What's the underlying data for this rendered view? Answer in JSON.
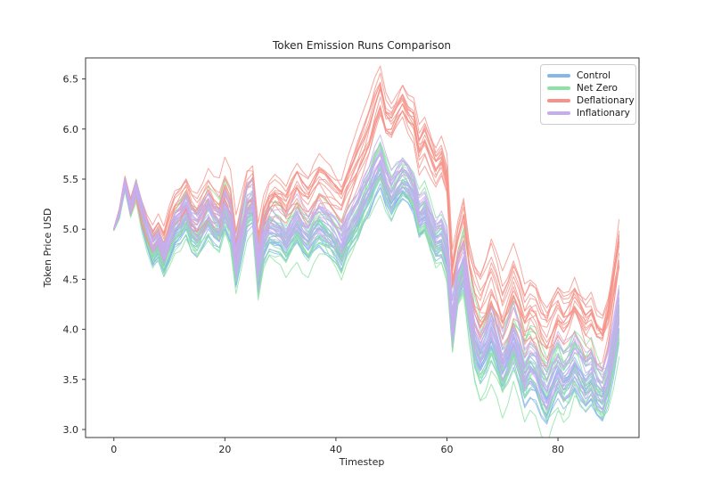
{
  "figure": {
    "title": "Token Emission Runs Comparison",
    "xlabel": "Timestep",
    "ylabel": "Token Price USD"
  },
  "legend": {
    "position": "upper right",
    "entries": [
      "Control",
      "Net Zero",
      "Deflationary",
      "Inflationary"
    ]
  },
  "chart_data": {
    "type": "line",
    "title": "Token Emission Runs Comparison",
    "xlabel": "Timestep",
    "ylabel": "Token Price USD",
    "xlim": [
      -5.1,
      94.6
    ],
    "ylim": [
      2.92,
      6.71
    ],
    "xticks": [
      0,
      20,
      40,
      60,
      80
    ],
    "yticks": [
      3.0,
      3.5,
      4.0,
      4.5,
      5.0,
      5.5,
      6.0,
      6.5
    ],
    "grid": false,
    "legend_position": "upper right",
    "n_timesteps": 92,
    "runs_per_series": 16,
    "line_width": 1,
    "line_opacity": 0.8,
    "axis_color": "#3a3a3a",
    "spread_profile": [
      [
        0,
        0.05
      ],
      [
        2,
        0.3
      ],
      [
        5,
        0.55
      ],
      [
        12,
        0.85
      ],
      [
        20,
        1.0
      ],
      [
        58,
        1.0
      ],
      [
        63,
        1.3
      ],
      [
        70,
        1.4
      ],
      [
        91,
        1.4
      ]
    ],
    "series": [
      {
        "name": "Control",
        "color": "#85b8e8",
        "spread": 0.2,
        "mean": [
          5.0,
          5.14,
          5.43,
          5.18,
          5.38,
          5.08,
          4.88,
          4.71,
          4.78,
          4.63,
          4.78,
          4.93,
          4.98,
          5.08,
          4.93,
          4.88,
          4.98,
          5.08,
          4.98,
          4.93,
          5.11,
          4.98,
          4.55,
          4.83,
          5.11,
          5.17,
          4.48,
          4.81,
          4.93,
          4.91,
          4.88,
          4.79,
          4.89,
          4.98,
          4.89,
          4.83,
          4.93,
          4.99,
          4.93,
          4.88,
          4.81,
          4.71,
          4.88,
          4.98,
          5.08,
          5.23,
          5.33,
          5.48,
          5.58,
          5.38,
          5.25,
          5.35,
          5.43,
          5.39,
          5.29,
          5.05,
          5.11,
          4.95,
          4.81,
          4.85,
          4.68,
          3.93,
          4.38,
          4.53,
          4.13,
          3.78,
          3.63,
          3.73,
          3.88,
          3.73,
          3.53,
          3.65,
          3.81,
          3.65,
          3.45,
          3.55,
          3.51,
          3.35,
          3.25,
          3.41,
          3.53,
          3.43,
          3.49,
          3.61,
          3.51,
          3.41,
          3.47,
          3.33,
          3.27,
          3.43,
          3.73,
          4.08
        ]
      },
      {
        "name": "Net Zero",
        "color": "#8ce3a4",
        "spread": 0.4,
        "mean": [
          5.0,
          5.15,
          5.45,
          5.2,
          5.4,
          5.15,
          4.95,
          4.78,
          4.85,
          4.7,
          4.85,
          5.0,
          5.05,
          5.15,
          5.0,
          4.95,
          5.05,
          5.15,
          5.05,
          5.0,
          5.18,
          5.05,
          4.62,
          4.9,
          5.18,
          5.24,
          4.55,
          4.88,
          5.0,
          4.98,
          4.95,
          4.86,
          4.96,
          5.05,
          4.96,
          4.9,
          5.0,
          5.06,
          5.0,
          4.95,
          4.88,
          4.78,
          4.95,
          5.05,
          5.15,
          5.3,
          5.4,
          5.55,
          5.65,
          5.45,
          5.32,
          5.42,
          5.5,
          5.46,
          5.36,
          5.12,
          5.18,
          5.02,
          4.88,
          4.92,
          4.75,
          4.0,
          4.45,
          4.6,
          4.2,
          3.85,
          3.7,
          3.8,
          3.95,
          3.8,
          3.6,
          3.72,
          3.88,
          3.72,
          3.52,
          3.62,
          3.58,
          3.42,
          3.32,
          3.48,
          3.6,
          3.5,
          3.56,
          3.68,
          3.58,
          3.48,
          3.54,
          3.4,
          3.34,
          3.5,
          3.8,
          4.15
        ]
      },
      {
        "name": "Deflationary",
        "color": "#f5938a",
        "spread": 0.34,
        "mean": [
          5.0,
          5.18,
          5.48,
          5.24,
          5.42,
          5.2,
          5.02,
          4.9,
          4.98,
          4.85,
          5.05,
          5.2,
          5.25,
          5.35,
          5.2,
          5.15,
          5.25,
          5.35,
          5.25,
          5.2,
          5.38,
          5.26,
          4.82,
          5.08,
          5.35,
          5.4,
          4.8,
          5.1,
          5.25,
          5.32,
          5.28,
          5.22,
          5.34,
          5.44,
          5.34,
          5.28,
          5.38,
          5.48,
          5.44,
          5.38,
          5.32,
          5.26,
          5.42,
          5.55,
          5.7,
          5.85,
          6.0,
          6.2,
          6.35,
          6.1,
          6.05,
          6.15,
          6.26,
          6.15,
          6.1,
          5.82,
          5.92,
          5.76,
          5.62,
          5.7,
          5.5,
          4.55,
          4.85,
          5.05,
          4.6,
          4.35,
          4.22,
          4.32,
          4.48,
          4.32,
          4.12,
          4.26,
          4.42,
          4.28,
          4.08,
          4.18,
          4.14,
          3.98,
          3.9,
          4.04,
          4.16,
          4.06,
          4.12,
          4.26,
          4.16,
          4.05,
          4.1,
          3.95,
          3.9,
          4.1,
          4.45,
          4.8
        ]
      },
      {
        "name": "Inflationary",
        "color": "#c4aef0",
        "spread": 0.26,
        "mean": [
          5.0,
          5.16,
          5.46,
          5.21,
          5.41,
          5.21,
          5.01,
          4.84,
          4.91,
          4.76,
          4.91,
          5.06,
          5.11,
          5.21,
          5.06,
          5.01,
          5.11,
          5.21,
          5.11,
          5.06,
          5.24,
          5.11,
          4.68,
          4.96,
          5.24,
          5.3,
          4.61,
          4.94,
          5.06,
          5.04,
          5.01,
          4.92,
          5.02,
          5.11,
          5.02,
          4.96,
          5.06,
          5.12,
          5.06,
          5.01,
          4.94,
          4.84,
          5.01,
          5.11,
          5.21,
          5.36,
          5.46,
          5.61,
          5.71,
          5.51,
          5.38,
          5.48,
          5.56,
          5.52,
          5.42,
          5.18,
          5.24,
          5.08,
          4.94,
          4.98,
          4.81,
          4.06,
          4.51,
          4.66,
          4.26,
          3.91,
          3.76,
          3.86,
          4.01,
          3.86,
          3.66,
          3.78,
          3.94,
          3.78,
          3.58,
          3.68,
          3.64,
          3.48,
          3.38,
          3.54,
          3.66,
          3.56,
          3.62,
          3.74,
          3.64,
          3.54,
          3.6,
          3.46,
          3.4,
          3.56,
          3.86,
          4.21
        ]
      }
    ]
  }
}
